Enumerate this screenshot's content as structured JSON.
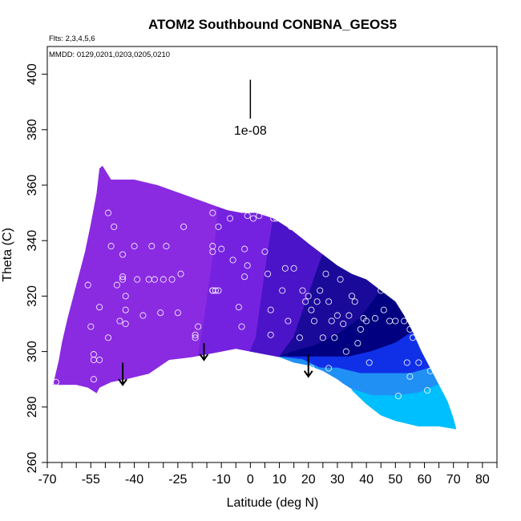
{
  "chart_data": {
    "type": "heatmap",
    "title": "ATOM2 Southbound CONBNA_GEOS5",
    "flights_note": "Flts: 2,3,4,5,6",
    "dates_note": "MMDD: 0129,0201,0203,0205,0210",
    "xlabel": "Latitude (deg N)",
    "ylabel": "Theta (C)",
    "xlim": [
      -70,
      85
    ],
    "ylim": [
      260,
      410
    ],
    "x_ticks": [
      -70,
      -55,
      -40,
      -25,
      -10,
      0,
      10,
      20,
      30,
      40,
      50,
      60,
      70,
      80
    ],
    "x_minor_ticks": [
      -65,
      -60,
      -50,
      -45,
      -35,
      -30,
      -20,
      -15,
      -5,
      5,
      15,
      25,
      35,
      45,
      55,
      65,
      75,
      85
    ],
    "y_ticks": [
      260,
      280,
      300,
      320,
      340,
      360,
      380,
      400
    ],
    "scale_label": "1e-08",
    "scale_bar": {
      "x": 0,
      "y_top": 398,
      "y_bottom": 384
    },
    "colors": {
      "purple": "#8a2be2",
      "violet": "#7522e0",
      "indigo": "#4b14c8",
      "dark_blue": "#1a0a9a",
      "navy": "#000080",
      "blue": "#1030e8",
      "sky_blue": "#2090f5",
      "light_blue": "#00bfff"
    },
    "field": {
      "upper_boundary": [
        [
          -68,
          288
        ],
        [
          -66,
          297
        ],
        [
          -65,
          303
        ],
        [
          -63,
          312
        ],
        [
          -61,
          320
        ],
        [
          -59,
          328
        ],
        [
          -57,
          336
        ],
        [
          -55,
          346
        ],
        [
          -53,
          357
        ],
        [
          -52,
          366
        ],
        [
          -51,
          367
        ],
        [
          -48,
          362
        ],
        [
          -40,
          362
        ],
        [
          -32,
          360
        ],
        [
          -24,
          357
        ],
        [
          -16,
          354
        ],
        [
          -8,
          351
        ],
        [
          -3,
          350
        ],
        [
          2,
          350
        ],
        [
          8,
          348
        ],
        [
          14,
          344
        ],
        [
          20,
          339
        ],
        [
          25,
          335
        ],
        [
          30,
          331
        ],
        [
          35,
          328
        ],
        [
          40,
          326
        ],
        [
          45,
          322
        ],
        [
          50,
          318
        ],
        [
          53,
          313
        ],
        [
          56,
          307
        ],
        [
          59,
          300
        ],
        [
          62,
          294
        ],
        [
          65,
          288
        ],
        [
          68,
          282
        ],
        [
          70,
          276
        ],
        [
          71,
          272
        ]
      ],
      "lower_boundary": [
        [
          71,
          272
        ],
        [
          65,
          273
        ],
        [
          58,
          273
        ],
        [
          50,
          275
        ],
        [
          45,
          277
        ],
        [
          40,
          281
        ],
        [
          35,
          286
        ],
        [
          30,
          290
        ],
        [
          25,
          293
        ],
        [
          20,
          295
        ],
        [
          15,
          296
        ],
        [
          10,
          298
        ],
        [
          5,
          299
        ],
        [
          0,
          300
        ],
        [
          -5,
          301
        ],
        [
          -10,
          300
        ],
        [
          -20,
          298
        ],
        [
          -28,
          297
        ],
        [
          -35,
          292
        ],
        [
          -43,
          290
        ],
        [
          -48,
          289
        ],
        [
          -52,
          287
        ],
        [
          -53,
          285
        ],
        [
          -56,
          287
        ],
        [
          -60,
          288
        ],
        [
          -68,
          288
        ]
      ],
      "color_bands": [
        {
          "color": "purple",
          "polygon": [
            [
              -68,
              288
            ],
            [
              -66,
              297
            ],
            [
              -65,
              303
            ],
            [
              -63,
              312
            ],
            [
              -61,
              320
            ],
            [
              -59,
              328
            ],
            [
              -57,
              336
            ],
            [
              -55,
              346
            ],
            [
              -53,
              357
            ],
            [
              -52,
              366
            ],
            [
              -51,
              367
            ],
            [
              -48,
              362
            ],
            [
              -40,
              362
            ],
            [
              -32,
              360
            ],
            [
              -24,
              357
            ],
            [
              -16,
              354
            ],
            [
              -11,
              352
            ],
            [
              -12,
              340
            ],
            [
              -14,
              325
            ],
            [
              -16,
              310
            ],
            [
              -18,
              298
            ],
            [
              -28,
              297
            ],
            [
              -35,
              292
            ],
            [
              -43,
              290
            ],
            [
              -48,
              289
            ],
            [
              -52,
              287
            ],
            [
              -53,
              285
            ],
            [
              -56,
              287
            ],
            [
              -60,
              288
            ]
          ]
        },
        {
          "color": "violet",
          "polygon": [
            [
              -11,
              352
            ],
            [
              -8,
              351
            ],
            [
              -3,
              350
            ],
            [
              2,
              350
            ],
            [
              8,
              348
            ],
            [
              6,
              335
            ],
            [
              4,
              320
            ],
            [
              2,
              305
            ],
            [
              0,
              300
            ],
            [
              -5,
              301
            ],
            [
              -10,
              300
            ],
            [
              -18,
              298
            ],
            [
              -16,
              310
            ],
            [
              -14,
              325
            ],
            [
              -12,
              340
            ]
          ]
        },
        {
          "color": "indigo",
          "polygon": [
            [
              8,
              348
            ],
            [
              14,
              344
            ],
            [
              20,
              339
            ],
            [
              25,
              335
            ],
            [
              20,
              320
            ],
            [
              15,
              305
            ],
            [
              10,
              298
            ],
            [
              5,
              299
            ],
            [
              0,
              300
            ],
            [
              2,
              305
            ],
            [
              4,
              320
            ],
            [
              6,
              335
            ]
          ]
        },
        {
          "color": "dark_blue",
          "polygon": [
            [
              25,
              335
            ],
            [
              30,
              331
            ],
            [
              35,
              328
            ],
            [
              40,
              326
            ],
            [
              45,
              322
            ],
            [
              38,
              312
            ],
            [
              30,
              306
            ],
            [
              22,
              302
            ],
            [
              15,
              300
            ],
            [
              10,
              298
            ],
            [
              15,
              305
            ],
            [
              20,
              320
            ]
          ]
        },
        {
          "color": "navy",
          "polygon": [
            [
              45,
              322
            ],
            [
              50,
              318
            ],
            [
              53,
              313
            ],
            [
              56,
              307
            ],
            [
              50,
              303
            ],
            [
              42,
              300
            ],
            [
              34,
              298
            ],
            [
              26,
              298
            ],
            [
              18,
              298
            ],
            [
              10,
              298
            ],
            [
              15,
              300
            ],
            [
              22,
              302
            ],
            [
              30,
              306
            ],
            [
              38,
              312
            ]
          ]
        },
        {
          "color": "blue",
          "polygon": [
            [
              56,
              307
            ],
            [
              59,
              300
            ],
            [
              62,
              294
            ],
            [
              55,
              292
            ],
            [
              47,
              292
            ],
            [
              38,
              292
            ],
            [
              30,
              294
            ],
            [
              24,
              294
            ],
            [
              18,
              297
            ],
            [
              10,
              298
            ],
            [
              18,
              298
            ],
            [
              26,
              298
            ],
            [
              34,
              298
            ],
            [
              42,
              300
            ],
            [
              50,
              303
            ]
          ]
        },
        {
          "color": "sky_blue",
          "polygon": [
            [
              62,
              294
            ],
            [
              65,
              288
            ],
            [
              58,
              285
            ],
            [
              50,
              284
            ],
            [
              42,
              284
            ],
            [
              36,
              286
            ],
            [
              30,
              290
            ],
            [
              25,
              293
            ],
            [
              20,
              295
            ],
            [
              15,
              296
            ],
            [
              10,
              298
            ],
            [
              18,
              297
            ],
            [
              24,
              294
            ],
            [
              30,
              294
            ],
            [
              38,
              292
            ],
            [
              47,
              292
            ],
            [
              55,
              292
            ]
          ]
        },
        {
          "color": "light_blue",
          "polygon": [
            [
              65,
              288
            ],
            [
              68,
              282
            ],
            [
              70,
              276
            ],
            [
              71,
              272
            ],
            [
              65,
              273
            ],
            [
              58,
              273
            ],
            [
              50,
              275
            ],
            [
              45,
              277
            ],
            [
              40,
              281
            ],
            [
              35,
              286
            ],
            [
              36,
              286
            ],
            [
              42,
              284
            ],
            [
              50,
              284
            ],
            [
              58,
              285
            ]
          ]
        }
      ]
    },
    "observations": [
      [
        -67,
        289
      ],
      [
        -56,
        324
      ],
      [
        -55,
        309
      ],
      [
        -54,
        299
      ],
      [
        -54,
        290
      ],
      [
        -54,
        297
      ],
      [
        -52,
        297
      ],
      [
        -52,
        316
      ],
      [
        -49,
        305
      ],
      [
        -49,
        350
      ],
      [
        -48,
        338
      ],
      [
        -47,
        345
      ],
      [
        -46,
        324
      ],
      [
        -45,
        311
      ],
      [
        -44,
        327
      ],
      [
        -44,
        326
      ],
      [
        -44,
        335
      ],
      [
        -43,
        320
      ],
      [
        -43,
        315
      ],
      [
        -43,
        310
      ],
      [
        -40,
        338
      ],
      [
        -39,
        326
      ],
      [
        -37,
        313
      ],
      [
        -35,
        326
      ],
      [
        -34,
        338
      ],
      [
        -33,
        326
      ],
      [
        -31,
        314
      ],
      [
        -30,
        326
      ],
      [
        -29,
        338
      ],
      [
        -27,
        326
      ],
      [
        -25,
        314
      ],
      [
        -24,
        328
      ],
      [
        -23,
        345
      ],
      [
        -19,
        306
      ],
      [
        -19,
        305
      ],
      [
        -18,
        309
      ],
      [
        -13,
        350
      ],
      [
        -13,
        338
      ],
      [
        -13,
        336
      ],
      [
        -13,
        322
      ],
      [
        -13,
        322
      ],
      [
        -12,
        322
      ],
      [
        -11,
        345
      ],
      [
        -11,
        322
      ],
      [
        -10,
        337
      ],
      [
        -7,
        348
      ],
      [
        -6,
        333
      ],
      [
        -4,
        316
      ],
      [
        -3,
        309
      ],
      [
        -2,
        337
      ],
      [
        -2,
        327
      ],
      [
        -1,
        331
      ],
      [
        -1,
        349
      ],
      [
        1,
        348
      ],
      [
        3,
        349
      ],
      [
        5,
        336
      ],
      [
        6,
        328
      ],
      [
        7,
        315
      ],
      [
        7,
        306
      ],
      [
        8,
        348
      ],
      [
        9,
        348
      ],
      [
        10,
        349
      ],
      [
        11,
        322
      ],
      [
        12,
        330
      ],
      [
        13,
        311
      ],
      [
        14,
        345
      ],
      [
        15,
        330
      ],
      [
        17,
        305
      ],
      [
        18,
        322
      ],
      [
        19,
        318
      ],
      [
        20,
        320
      ],
      [
        21,
        315
      ],
      [
        22,
        311
      ],
      [
        23,
        318
      ],
      [
        24,
        322
      ],
      [
        25,
        305
      ],
      [
        26,
        328
      ],
      [
        27,
        318
      ],
      [
        28,
        311
      ],
      [
        29,
        305
      ],
      [
        30,
        313
      ],
      [
        31,
        326
      ],
      [
        32,
        310
      ],
      [
        33,
        300
      ],
      [
        34,
        313
      ],
      [
        35,
        320
      ],
      [
        36,
        318
      ],
      [
        37,
        303
      ],
      [
        38,
        308
      ],
      [
        39,
        312
      ],
      [
        40,
        311
      ],
      [
        41,
        296
      ],
      [
        43,
        312
      ],
      [
        45,
        322
      ],
      [
        46,
        315
      ],
      [
        48,
        311
      ],
      [
        49,
        322
      ],
      [
        50,
        311
      ],
      [
        51,
        284
      ],
      [
        53,
        311
      ],
      [
        54,
        296
      ],
      [
        55,
        291
      ],
      [
        55,
        308
      ],
      [
        56,
        305
      ],
      [
        58,
        296
      ],
      [
        61,
        286
      ],
      [
        62,
        293
      ],
      [
        21,
        294
      ],
      [
        27,
        294
      ]
    ],
    "arrows": [
      {
        "x": -44,
        "y_top": 296,
        "y_bottom": 288
      },
      {
        "x": -16,
        "y_top": 303,
        "y_bottom": 297
      },
      {
        "x": 20,
        "y_top": 299,
        "y_bottom": 291
      }
    ]
  }
}
